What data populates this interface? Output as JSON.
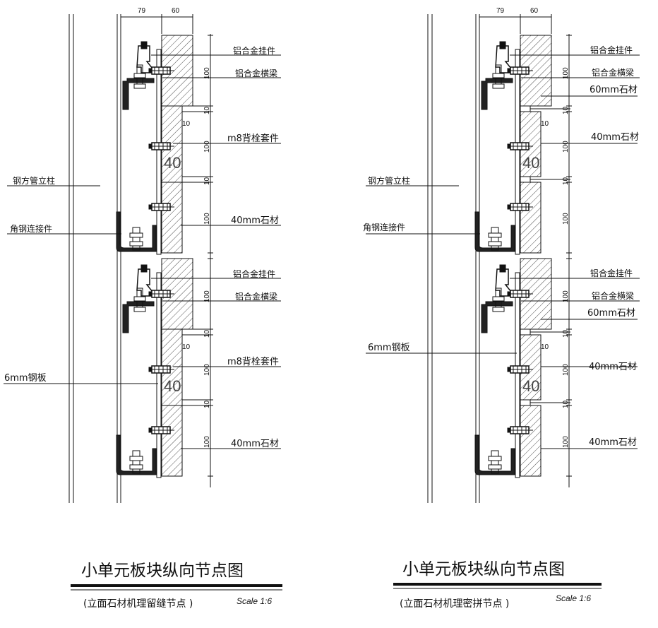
{
  "colors": {
    "line": "#111111",
    "background": "#ffffff"
  },
  "dimensions": {
    "d79": "79",
    "d60": "60",
    "d100": "100",
    "d10": "10",
    "d40": "40"
  },
  "left_detail": {
    "title": "小单元板块纵向节点图",
    "subtitle": "(立面石材机理留缝节点 )",
    "scale": "Scale 1:6",
    "labels": {
      "hanger_1": "铝合金挂件",
      "beam_1": "铝合金横梁",
      "bolt_1": "m8背栓套件",
      "stone40_1": "40mm石材",
      "hanger_2": "铝合金挂件",
      "beam_2": "铝合金横梁",
      "bolt_2": "m8背栓套件",
      "stone40_2": "40mm石材",
      "column": "钢方管立柱",
      "angle": "角钢连接件",
      "plate": "6mm钢板"
    }
  },
  "right_detail": {
    "title": "小单元板块纵向节点图",
    "subtitle": "(立面石材机理密拼节点 )",
    "scale": "Scale 1:6",
    "labels": {
      "hanger_1": "铝合金挂件",
      "beam_1": "铝合金横梁",
      "stone60_1": "60mm石材",
      "stone40_1": "40mm石材",
      "hanger_2": "铝合金挂件",
      "beam_2": "铝合金横梁",
      "stone60_2": "60mm石材",
      "stone40_2": "40mm石材",
      "stone40_3": "40mm石材",
      "column": "钢方管立柱",
      "angle": "角钢连接件",
      "plate": "6mm钢板"
    }
  }
}
